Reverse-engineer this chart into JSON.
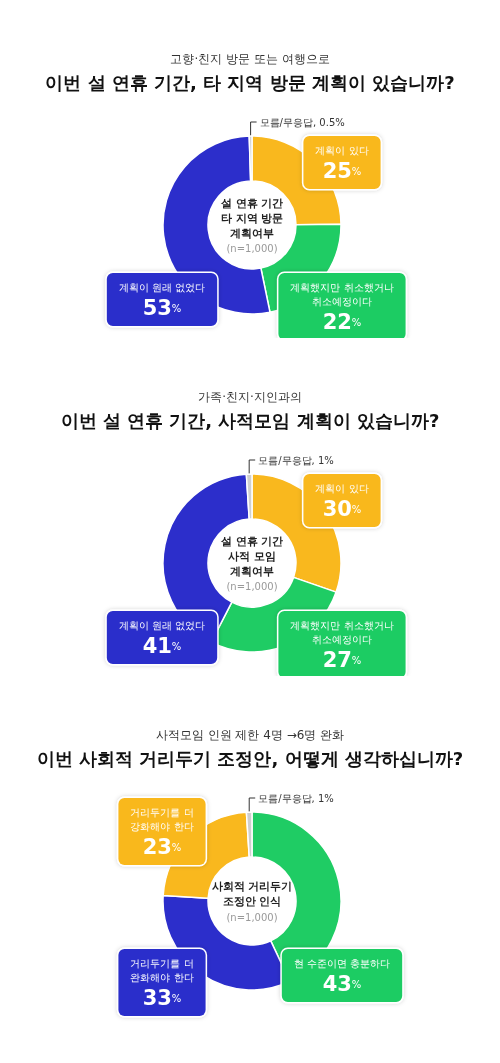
{
  "chart_data": [
    {
      "type": "donut",
      "subtitle": "고향·친지 방문 또는 여행으로",
      "title": "이번 설 연휴 기간, 타 지역 방문 계획이 있습니까?",
      "annotations": [
        "설 연휴 기간 타 지역 방문 계획여부",
        "(n=1,000)"
      ],
      "categories": [
        "계획이 있다",
        "계획했지만 취소했거나 취소예정이다",
        "계획이 원래 없었다",
        "모름/무응답"
      ],
      "values": [
        25,
        22,
        53,
        0.5
      ],
      "value_labels": [
        "25%",
        "22%",
        "53%",
        "0.5%"
      ],
      "colors": [
        "#f9b81e",
        "#1fcc64",
        "#2c2ecb",
        "#cfcfcf"
      ]
    },
    {
      "type": "donut",
      "subtitle": "가족·친지·지인과의",
      "title": "이번 설 연휴 기간, 사적모임 계획이 있습니까?",
      "annotations": [
        "설 연휴 기간 사적 모임 계획여부",
        "(n=1,000)"
      ],
      "categories": [
        "계획이 있다",
        "계획했지만 취소했거나 취소예정이다",
        "계획이 원래 없었다",
        "모름/무응답"
      ],
      "values": [
        30,
        27,
        41,
        1
      ],
      "value_labels": [
        "30%",
        "27%",
        "41%",
        "1%"
      ],
      "colors": [
        "#f9b81e",
        "#1fcc64",
        "#2c2ecb",
        "#cfcfcf"
      ]
    },
    {
      "type": "donut",
      "subtitle": "사적모임 인원 제한 4명 →6명 완화",
      "title": "이번 사회적 거리두기 조정안, 어떻게 생각하십니까?",
      "annotations": [
        "사회적 거리두기 조정안 인식",
        "(n=1,000)"
      ],
      "categories": [
        "현 수준이면 충분하다",
        "거리두기를 더 완화해야 한다",
        "거리두기를 더 강화해야 한다",
        "모름/무응답"
      ],
      "values": [
        43,
        33,
        23,
        1
      ],
      "value_labels": [
        "43%",
        "33%",
        "23%",
        "1%"
      ],
      "colors": [
        "#1fcc64",
        "#2c2ecb",
        "#f9b81e",
        "#cfcfcf"
      ]
    }
  ]
}
